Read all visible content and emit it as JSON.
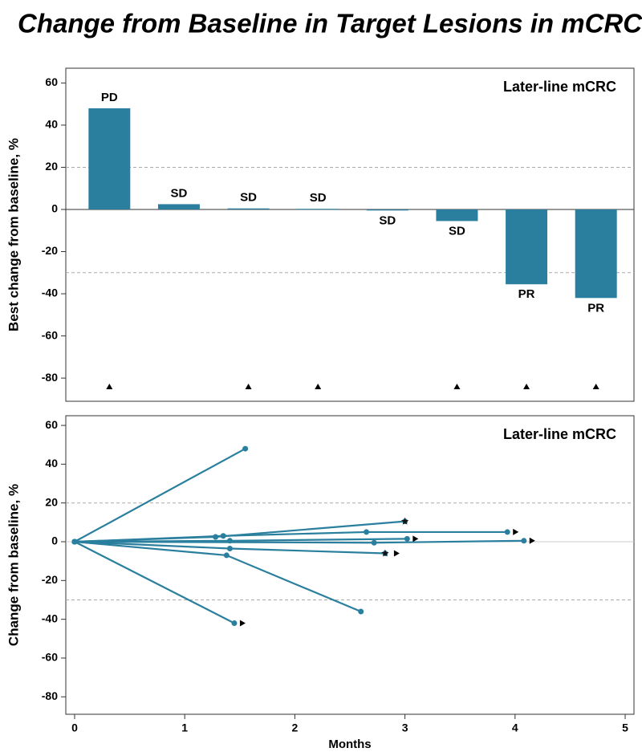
{
  "title": "Change from Baseline in Target Lesions in mCRC",
  "chart_data": [
    {
      "type": "bar",
      "annotation": "Later-line mCRC",
      "ylabel": "Best change from baseline, %",
      "categories": [
        null,
        null,
        null,
        null,
        null,
        null,
        null,
        null
      ],
      "values": [
        48,
        2.5,
        0.5,
        0.3,
        -0.5,
        -5.5,
        -35.5,
        -42
      ],
      "response_labels": [
        "PD",
        "SD",
        "SD",
        "SD",
        "SD",
        "SD",
        "PR",
        "PR"
      ],
      "ongoing": [
        true,
        false,
        true,
        true,
        false,
        true,
        true,
        true
      ],
      "color": "#2a7f9e",
      "ylim": [
        -91,
        67
      ],
      "yticks": [
        -80,
        -60,
        -40,
        -20,
        0,
        20,
        40,
        60
      ],
      "reference_lines": [
        20,
        -30
      ]
    },
    {
      "type": "line",
      "annotation": "Later-line mCRC",
      "ylabel": "Change from baseline, %",
      "xlabel": "Months",
      "color": "#2a7f9e",
      "series": [
        {
          "x": [
            0,
            1.55
          ],
          "values": [
            0,
            48
          ],
          "end_marker": "none"
        },
        {
          "x": [
            0,
            1.28,
            3.0
          ],
          "values": [
            0,
            2.5,
            10.5
          ],
          "end_marker": "star"
        },
        {
          "x": [
            0,
            1.35,
            2.65,
            3.93
          ],
          "values": [
            0,
            3,
            5,
            5
          ],
          "end_marker": "arrow"
        },
        {
          "x": [
            0,
            1.41,
            3.02
          ],
          "values": [
            0,
            0.5,
            1.5
          ],
          "end_marker": "arrow"
        },
        {
          "x": [
            0,
            2.72,
            4.08
          ],
          "values": [
            0,
            -0.5,
            0.5
          ],
          "end_marker": "arrow"
        },
        {
          "x": [
            0,
            1.41,
            2.82
          ],
          "values": [
            0,
            -3.5,
            -6
          ],
          "end_marker": "star-arrow"
        },
        {
          "x": [
            0,
            1.38,
            2.6
          ],
          "values": [
            0,
            -7,
            -36
          ],
          "end_marker": "none"
        },
        {
          "x": [
            0,
            1.45
          ],
          "values": [
            0,
            -42
          ],
          "end_marker": "arrow"
        }
      ],
      "xlim": [
        -0.08,
        5.08
      ],
      "xticks": [
        0,
        1,
        2,
        3,
        4,
        5
      ],
      "ylim": [
        -89,
        65
      ],
      "yticks": [
        -80,
        -60,
        -40,
        -20,
        0,
        20,
        40,
        60
      ],
      "reference_lines": [
        20,
        -30
      ]
    }
  ]
}
